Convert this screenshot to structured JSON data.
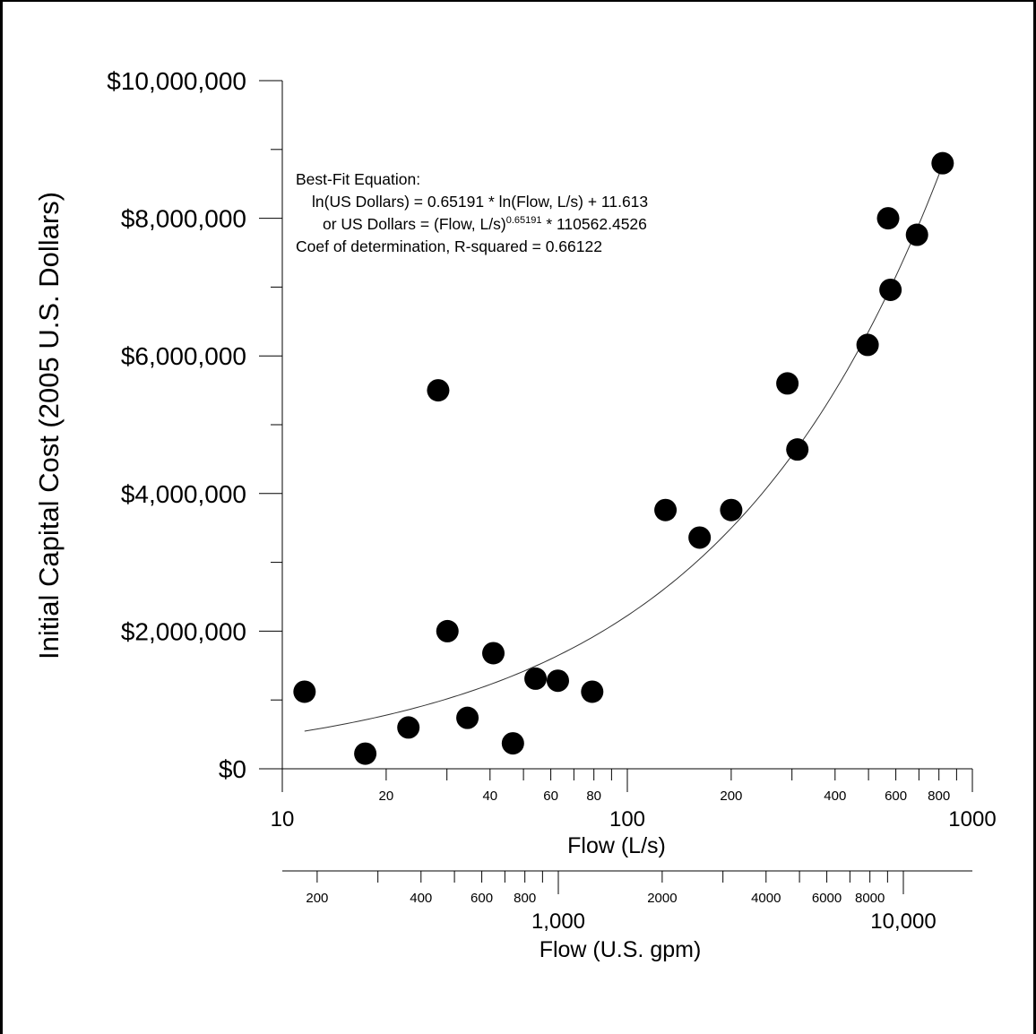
{
  "chart_data": {
    "type": "scatter",
    "ylabel": "Initial Capital Cost (2005 U.S. Dollars)",
    "xlabel": "Flow (L/s)",
    "x2label": "Flow (U.S. gpm)",
    "x_scale": "log",
    "xlim": [
      10,
      1000
    ],
    "ylim": [
      0,
      10000000
    ],
    "grid": false,
    "y_ticks": [
      {
        "value": 0,
        "label": "$0"
      },
      {
        "value": 2000000,
        "label": "$2,000,000"
      },
      {
        "value": 4000000,
        "label": "$4,000,000"
      },
      {
        "value": 6000000,
        "label": "$6,000,000"
      },
      {
        "value": 8000000,
        "label": "$8,000,000"
      },
      {
        "value": 10000000,
        "label": "$10,000,000"
      }
    ],
    "x_major_ticks": [
      {
        "value": 10,
        "label": "10"
      },
      {
        "value": 100,
        "label": "100"
      },
      {
        "value": 1000,
        "label": "1000"
      }
    ],
    "x_minor_labels": [
      {
        "value": 20,
        "label": "20"
      },
      {
        "value": 40,
        "label": "40"
      },
      {
        "value": 60,
        "label": "60"
      },
      {
        "value": 80,
        "label": "80"
      },
      {
        "value": 200,
        "label": "200"
      },
      {
        "value": 400,
        "label": "400"
      },
      {
        "value": 600,
        "label": "600"
      },
      {
        "value": 800,
        "label": "800"
      }
    ],
    "x2_major_ticks": [
      {
        "value": 1000,
        "label": "1,000"
      },
      {
        "value": 10000,
        "label": "10,000"
      }
    ],
    "x2_minor_labels": [
      {
        "value": 200,
        "label": "200"
      },
      {
        "value": 400,
        "label": "400"
      },
      {
        "value": 600,
        "label": "600"
      },
      {
        "value": 800,
        "label": "800"
      },
      {
        "value": 2000,
        "label": "2000"
      },
      {
        "value": 4000,
        "label": "4000"
      },
      {
        "value": 6000,
        "label": "6000"
      },
      {
        "value": 8000,
        "label": "8000"
      }
    ],
    "points": [
      {
        "x": 11.6,
        "y": 1120000
      },
      {
        "x": 17.4,
        "y": 220000
      },
      {
        "x": 23.2,
        "y": 600000
      },
      {
        "x": 28.3,
        "y": 5500000
      },
      {
        "x": 30.1,
        "y": 2000000
      },
      {
        "x": 34.4,
        "y": 740000
      },
      {
        "x": 40.9,
        "y": 1680000
      },
      {
        "x": 46.6,
        "y": 370000
      },
      {
        "x": 54.2,
        "y": 1310000
      },
      {
        "x": 62.9,
        "y": 1280000
      },
      {
        "x": 79.1,
        "y": 1120000
      },
      {
        "x": 129,
        "y": 3760000
      },
      {
        "x": 162,
        "y": 3360000
      },
      {
        "x": 200,
        "y": 3760000
      },
      {
        "x": 291,
        "y": 5600000
      },
      {
        "x": 311,
        "y": 4640000
      },
      {
        "x": 497,
        "y": 6160000
      },
      {
        "x": 570,
        "y": 8000000
      },
      {
        "x": 579,
        "y": 6960000
      },
      {
        "x": 691,
        "y": 7760000
      },
      {
        "x": 820,
        "y": 8800000
      }
    ],
    "fit": {
      "coefficient": 110562.4526,
      "exponent": 0.65191,
      "x_from": 11.6,
      "x_to": 820
    },
    "annotation": {
      "line1": "Best-Fit Equation:",
      "line2": "ln(US Dollars) = 0.65191 * ln(Flow, L/s) + 11.613",
      "line3_pre": "or US Dollars = (Flow, L/s)",
      "line3_sup": "0.65191",
      "line3_post": " * 110562.4526",
      "line4": "Coef of determination, R-squared = 0.66122"
    }
  }
}
